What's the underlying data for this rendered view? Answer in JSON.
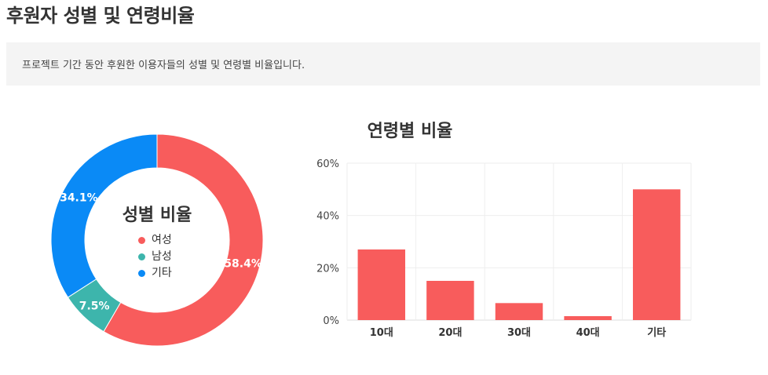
{
  "page": {
    "title": "후원자 성별 및 연령비율",
    "description": "프로젝트 기간 동안 후원한 이용자들의 성별 및 연령별 비율입니다."
  },
  "chart_data": [
    {
      "type": "pie",
      "title": "성별 비율",
      "slices": [
        {
          "name": "여성",
          "value": 58.4,
          "label": "58.4%",
          "color": "#f85c5c"
        },
        {
          "name": "남성",
          "value": 7.5,
          "label": "7.5%",
          "color": "#3db5ac"
        },
        {
          "name": "기타",
          "value": 34.1,
          "label": "34.1%",
          "color": "#0a8af6"
        }
      ],
      "legend_placement": "center"
    },
    {
      "type": "bar",
      "title": "연령별 비율",
      "categories": [
        "10대",
        "20대",
        "30대",
        "40대",
        "기타"
      ],
      "values": [
        27,
        15,
        6.5,
        1.5,
        50
      ],
      "color": "#f85c5c",
      "ylim": [
        0,
        60
      ],
      "yticks": [
        "0%",
        "20%",
        "40%",
        "60%"
      ],
      "ytick_values": [
        0,
        20,
        40,
        60
      ],
      "grid": true
    }
  ]
}
